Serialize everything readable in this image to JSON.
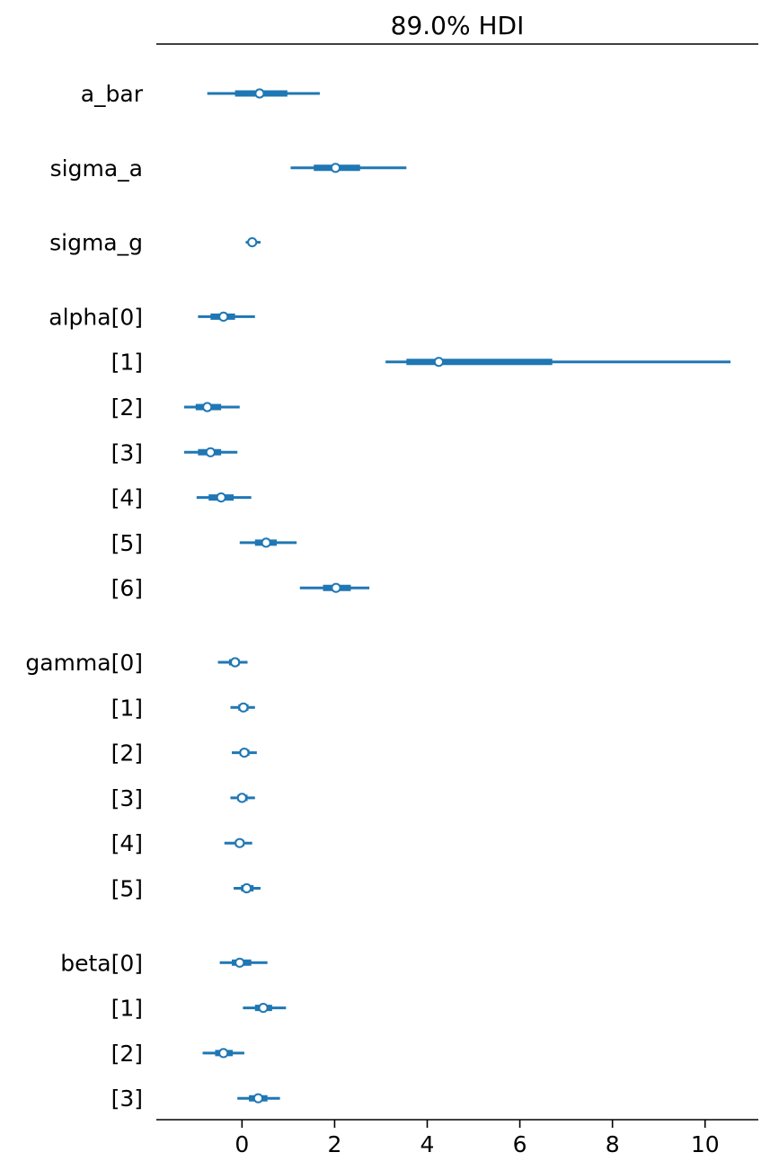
{
  "chart_data": {
    "type": "forest",
    "title": "89.0% HDI",
    "xlim": [
      -1.85,
      11.15
    ],
    "xticks": [
      "0",
      "2",
      "4",
      "6",
      "8",
      "10"
    ],
    "xtick_values": [
      0,
      2,
      4,
      6,
      8,
      10
    ],
    "grid": false,
    "color": "#1f77b4",
    "rows": [
      {
        "label": "a_bar",
        "group": 0,
        "hdi": [
          -0.75,
          1.68
        ],
        "iqr": [
          -0.15,
          0.98
        ],
        "median": 0.38
      },
      {
        "label": "sigma_a",
        "group": 1,
        "hdi": [
          1.05,
          3.55
        ],
        "iqr": [
          1.55,
          2.55
        ],
        "median": 2.02
      },
      {
        "label": "sigma_g",
        "group": 2,
        "hdi": [
          0.08,
          0.4
        ],
        "iqr": [
          0.14,
          0.3
        ],
        "median": 0.22
      },
      {
        "label": "alpha[0]",
        "group": 3,
        "hdi": [
          -0.95,
          0.28
        ],
        "iqr": [
          -0.68,
          -0.15
        ],
        "median": -0.4
      },
      {
        "label": "[1]",
        "group": 3,
        "hdi": [
          3.1,
          10.55
        ],
        "iqr": [
          3.55,
          6.7
        ],
        "median": 4.25
      },
      {
        "label": "[2]",
        "group": 3,
        "hdi": [
          -1.25,
          -0.05
        ],
        "iqr": [
          -1.0,
          -0.45
        ],
        "median": -0.75
      },
      {
        "label": "[3]",
        "group": 3,
        "hdi": [
          -1.25,
          -0.1
        ],
        "iqr": [
          -0.95,
          -0.45
        ],
        "median": -0.68
      },
      {
        "label": "[4]",
        "group": 3,
        "hdi": [
          -0.98,
          0.2
        ],
        "iqr": [
          -0.72,
          -0.18
        ],
        "median": -0.45
      },
      {
        "label": "[5]",
        "group": 3,
        "hdi": [
          -0.05,
          1.18
        ],
        "iqr": [
          0.28,
          0.75
        ],
        "median": 0.52
      },
      {
        "label": "[6]",
        "group": 3,
        "hdi": [
          1.25,
          2.75
        ],
        "iqr": [
          1.75,
          2.35
        ],
        "median": 2.03
      },
      {
        "label": "gamma[0]",
        "group": 4,
        "hdi": [
          -0.52,
          0.12
        ],
        "iqr": [
          -0.28,
          -0.05
        ],
        "median": -0.15
      },
      {
        "label": "[1]",
        "group": 4,
        "hdi": [
          -0.25,
          0.28
        ],
        "iqr": [
          -0.08,
          0.14
        ],
        "median": 0.03
      },
      {
        "label": "[2]",
        "group": 4,
        "hdi": [
          -0.22,
          0.32
        ],
        "iqr": [
          -0.05,
          0.16
        ],
        "median": 0.05
      },
      {
        "label": "[3]",
        "group": 4,
        "hdi": [
          -0.25,
          0.28
        ],
        "iqr": [
          -0.1,
          0.12
        ],
        "median": 0.0
      },
      {
        "label": "[4]",
        "group": 4,
        "hdi": [
          -0.38,
          0.22
        ],
        "iqr": [
          -0.15,
          0.05
        ],
        "median": -0.05
      },
      {
        "label": "[5]",
        "group": 4,
        "hdi": [
          -0.18,
          0.4
        ],
        "iqr": [
          -0.02,
          0.25
        ],
        "median": 0.1
      },
      {
        "label": "beta[0]",
        "group": 5,
        "hdi": [
          -0.48,
          0.55
        ],
        "iqr": [
          -0.22,
          0.2
        ],
        "median": -0.05
      },
      {
        "label": "[1]",
        "group": 5,
        "hdi": [
          0.02,
          0.95
        ],
        "iqr": [
          0.28,
          0.65
        ],
        "median": 0.46
      },
      {
        "label": "[2]",
        "group": 5,
        "hdi": [
          -0.85,
          0.05
        ],
        "iqr": [
          -0.58,
          -0.2
        ],
        "median": -0.4
      },
      {
        "label": "[3]",
        "group": 5,
        "hdi": [
          -0.1,
          0.82
        ],
        "iqr": [
          0.15,
          0.55
        ],
        "median": 0.35
      }
    ]
  }
}
